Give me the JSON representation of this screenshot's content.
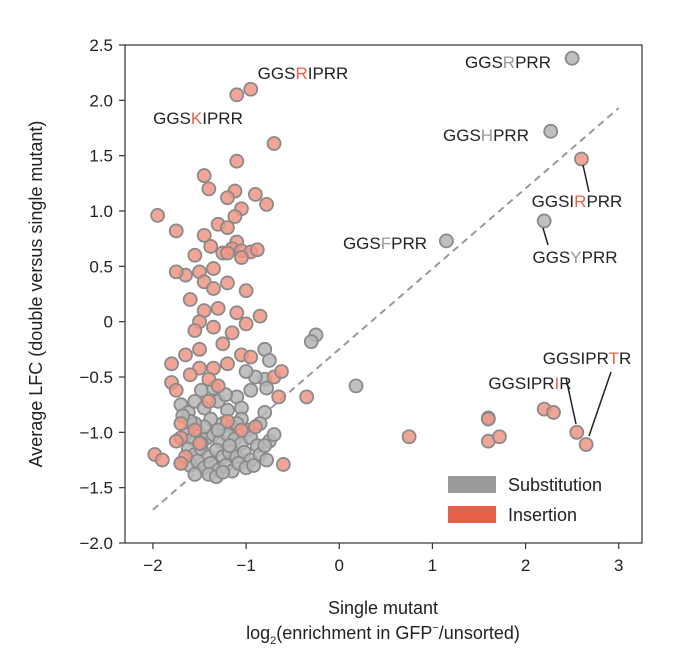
{
  "chart_data": {
    "type": "scatter",
    "xlabel_line1": "Single mutant",
    "xlabel_line2_pre": "log",
    "xlabel_line2_sub": "2",
    "xlabel_line2_mid": "(enrichment in GFP",
    "xlabel_line2_sup": "−",
    "xlabel_line2_post": "/unsorted)",
    "ylabel": "Average LFC (double versus single mutant)",
    "xlim": [
      -2.3,
      3.25
    ],
    "ylim": [
      -2.0,
      2.5
    ],
    "xticks": [
      -2,
      -1,
      0,
      1,
      2,
      3
    ],
    "xtick_labels": [
      "−2",
      "−1",
      "0",
      "1",
      "2",
      "3"
    ],
    "yticks": [
      -2.0,
      -1.5,
      -1.0,
      -0.5,
      0,
      0.5,
      1.0,
      1.5,
      2.0,
      2.5
    ],
    "ytick_labels": [
      "−2.0",
      "−1.5",
      "−1.0",
      "−0.5",
      "0",
      "0.5",
      "1.0",
      "1.5",
      "2.0",
      "2.5"
    ],
    "diagonal": {
      "x": [
        -2.0,
        3.0
      ],
      "y": [
        -1.7,
        1.93
      ],
      "color": "#999999"
    },
    "colors": {
      "substitution": "#999999",
      "insertion": "#e8604c",
      "substitution_point": "#b5b5b5",
      "insertion_point": "#ef9585",
      "edge": "#8a8a8a",
      "highlight": "#e8604c",
      "muted": "#999999"
    },
    "legend": [
      {
        "label": "Substitution",
        "color": "#999999"
      },
      {
        "label": "Insertion",
        "color": "#e8604c"
      }
    ],
    "series": [
      {
        "name": "Substitution",
        "points": [
          [
            2.5,
            2.38
          ],
          [
            2.27,
            1.72
          ],
          [
            2.2,
            0.91
          ],
          [
            1.15,
            0.73
          ],
          [
            0.18,
            -0.58
          ],
          [
            1.6,
            -0.87
          ],
          [
            -0.25,
            -0.12
          ],
          [
            -0.3,
            -0.18
          ],
          [
            -0.8,
            -0.25
          ],
          [
            -0.75,
            -0.35
          ],
          [
            -0.8,
            -0.52
          ],
          [
            -0.78,
            -0.6
          ],
          [
            -0.8,
            -0.82
          ],
          [
            -0.9,
            -0.5
          ],
          [
            -1.0,
            -0.45
          ],
          [
            -0.95,
            -0.62
          ],
          [
            -1.7,
            -0.75
          ],
          [
            -1.62,
            -0.82
          ],
          [
            -1.55,
            -0.72
          ],
          [
            -1.45,
            -0.78
          ],
          [
            -1.38,
            -0.88
          ],
          [
            -1.3,
            -0.72
          ],
          [
            -1.2,
            -0.8
          ],
          [
            -1.1,
            -0.68
          ],
          [
            -1.05,
            -0.78
          ],
          [
            -1.25,
            -0.92
          ],
          [
            -1.15,
            -0.95
          ],
          [
            -1.05,
            -0.88
          ],
          [
            -0.98,
            -0.98
          ],
          [
            -1.48,
            -0.62
          ],
          [
            -1.35,
            -0.6
          ],
          [
            -1.22,
            -0.66
          ],
          [
            -1.65,
            -1.02
          ],
          [
            -1.58,
            -1.06
          ],
          [
            -1.5,
            -1.0
          ],
          [
            -1.42,
            -1.05
          ],
          [
            -1.35,
            -1.02
          ],
          [
            -1.28,
            -1.08
          ],
          [
            -1.2,
            -1.02
          ],
          [
            -1.12,
            -1.06
          ],
          [
            -1.05,
            -1.1
          ],
          [
            -0.95,
            -1.05
          ],
          [
            -0.88,
            -1.12
          ],
          [
            -0.75,
            -1.08
          ],
          [
            -0.7,
            -1.02
          ],
          [
            -1.62,
            -1.15
          ],
          [
            -1.55,
            -1.2
          ],
          [
            -1.48,
            -1.15
          ],
          [
            -1.4,
            -1.22
          ],
          [
            -1.32,
            -1.16
          ],
          [
            -1.25,
            -1.22
          ],
          [
            -1.18,
            -1.18
          ],
          [
            -1.1,
            -1.22
          ],
          [
            -1.02,
            -1.18
          ],
          [
            -0.95,
            -1.25
          ],
          [
            -0.85,
            -1.2
          ],
          [
            -0.78,
            -1.25
          ],
          [
            -0.8,
            -1.12
          ],
          [
            -1.7,
            -1.28
          ],
          [
            -1.6,
            -1.3
          ],
          [
            -1.52,
            -1.26
          ],
          [
            -1.45,
            -1.32
          ],
          [
            -1.38,
            -1.28
          ],
          [
            -1.3,
            -1.34
          ],
          [
            -1.22,
            -1.3
          ],
          [
            -1.15,
            -1.35
          ],
          [
            -1.08,
            -1.28
          ],
          [
            -1.0,
            -1.32
          ],
          [
            -0.92,
            -1.3
          ],
          [
            -1.4,
            -1.38
          ],
          [
            -1.32,
            -1.4
          ],
          [
            -1.25,
            -1.36
          ],
          [
            -1.45,
            -0.95
          ],
          [
            -1.55,
            -0.92
          ],
          [
            -1.3,
            -0.98
          ],
          [
            -1.1,
            -0.92
          ],
          [
            -0.85,
            -0.92
          ],
          [
            -1.18,
            -1.12
          ],
          [
            -1.55,
            -1.38
          ],
          [
            -1.48,
            -1.1
          ],
          [
            -1.6,
            -0.9
          ],
          [
            -1.68,
            -0.85
          ]
        ]
      },
      {
        "name": "Insertion",
        "points": [
          [
            -0.95,
            2.1
          ],
          [
            -1.1,
            2.05
          ],
          [
            -0.7,
            1.61
          ],
          [
            -1.1,
            1.45
          ],
          [
            -1.45,
            1.32
          ],
          [
            -1.4,
            1.2
          ],
          [
            -1.12,
            1.18
          ],
          [
            -1.2,
            1.12
          ],
          [
            -0.9,
            1.15
          ],
          [
            -0.78,
            1.06
          ],
          [
            -1.05,
            1.02
          ],
          [
            -1.95,
            0.96
          ],
          [
            -1.75,
            0.82
          ],
          [
            -1.12,
            0.95
          ],
          [
            -1.3,
            0.88
          ],
          [
            -1.2,
            0.85
          ],
          [
            -1.45,
            0.78
          ],
          [
            -1.1,
            0.72
          ],
          [
            -1.38,
            0.68
          ],
          [
            -1.15,
            0.66
          ],
          [
            -1.05,
            0.64
          ],
          [
            -1.25,
            0.62
          ],
          [
            -0.95,
            0.63
          ],
          [
            -1.05,
            0.58
          ],
          [
            -1.2,
            0.62
          ],
          [
            -1.55,
            0.6
          ],
          [
            -0.88,
            0.65
          ],
          [
            -1.5,
            0.45
          ],
          [
            -1.65,
            0.42
          ],
          [
            -1.75,
            0.45
          ],
          [
            -1.35,
            0.48
          ],
          [
            -1.45,
            0.36
          ],
          [
            -1.35,
            0.3
          ],
          [
            -1.2,
            0.35
          ],
          [
            -1.0,
            0.28
          ],
          [
            -1.6,
            0.2
          ],
          [
            -1.45,
            0.1
          ],
          [
            -1.3,
            0.12
          ],
          [
            -1.1,
            0.08
          ],
          [
            -0.85,
            0.05
          ],
          [
            -1.5,
            0.0
          ],
          [
            -1.35,
            -0.05
          ],
          [
            -1.55,
            -0.08
          ],
          [
            -1.15,
            -0.1
          ],
          [
            -1.0,
            -0.02
          ],
          [
            -1.25,
            -0.2
          ],
          [
            -1.5,
            -0.25
          ],
          [
            -1.65,
            -0.3
          ],
          [
            -1.8,
            -0.38
          ],
          [
            -1.5,
            -0.42
          ],
          [
            -1.35,
            -0.42
          ],
          [
            -1.2,
            -0.38
          ],
          [
            -1.05,
            -0.3
          ],
          [
            -0.95,
            -0.32
          ],
          [
            -1.6,
            -0.48
          ],
          [
            -1.8,
            -0.55
          ],
          [
            -1.75,
            -0.62
          ],
          [
            -1.4,
            -0.52
          ],
          [
            -1.3,
            -0.58
          ],
          [
            -0.7,
            -0.5
          ],
          [
            -0.62,
            -0.45
          ],
          [
            -0.65,
            -0.68
          ],
          [
            -1.7,
            -0.92
          ],
          [
            -1.55,
            -0.98
          ],
          [
            -1.5,
            -1.1
          ],
          [
            -1.7,
            -1.05
          ],
          [
            -1.75,
            -1.08
          ],
          [
            -1.98,
            -1.2
          ],
          [
            -1.9,
            -1.25
          ],
          [
            -1.65,
            -1.22
          ],
          [
            -1.7,
            -1.28
          ],
          [
            -0.6,
            -1.29
          ],
          [
            -0.35,
            -0.68
          ],
          [
            0.75,
            -1.04
          ],
          [
            1.6,
            -0.88
          ],
          [
            1.6,
            -1.08
          ],
          [
            1.72,
            -1.04
          ],
          [
            2.2,
            -0.79
          ],
          [
            2.3,
            -0.82
          ],
          [
            2.55,
            -1.0
          ],
          [
            2.65,
            -1.11
          ],
          [
            2.6,
            1.47
          ],
          [
            -1.4,
            -0.72
          ],
          [
            -1.2,
            -0.9
          ],
          [
            -0.9,
            -0.95
          ],
          [
            -1.05,
            -0.98
          ]
        ]
      }
    ],
    "annotations": [
      {
        "pre": "GGS",
        "mid": "R",
        "post": "IPRR",
        "mid_color": "insertion"
      },
      {
        "pre": "GGS",
        "mid": "K",
        "post": "IPRR",
        "mid_color": "insertion"
      },
      {
        "pre": "GGS",
        "mid": "R",
        "post": "PRR",
        "mid_color": "substitution"
      },
      {
        "pre": "GGS",
        "mid": "H",
        "post": "PRR",
        "mid_color": "substitution"
      },
      {
        "pre": "GGSI",
        "mid": "R",
        "post": "PRR",
        "mid_color": "insertion"
      },
      {
        "pre": "GGS",
        "mid": "F",
        "post": "PRR",
        "mid_color": "substitution"
      },
      {
        "pre": "GGS",
        "mid": "Y",
        "post": "PRR",
        "mid_color": "substitution"
      },
      {
        "pre": "GGSIPR",
        "mid": "T",
        "post": "R",
        "mid_color": "insertion"
      },
      {
        "pre": "GGSIPR",
        "mid": "I",
        "post": "R",
        "mid_color": "insertion"
      }
    ]
  }
}
